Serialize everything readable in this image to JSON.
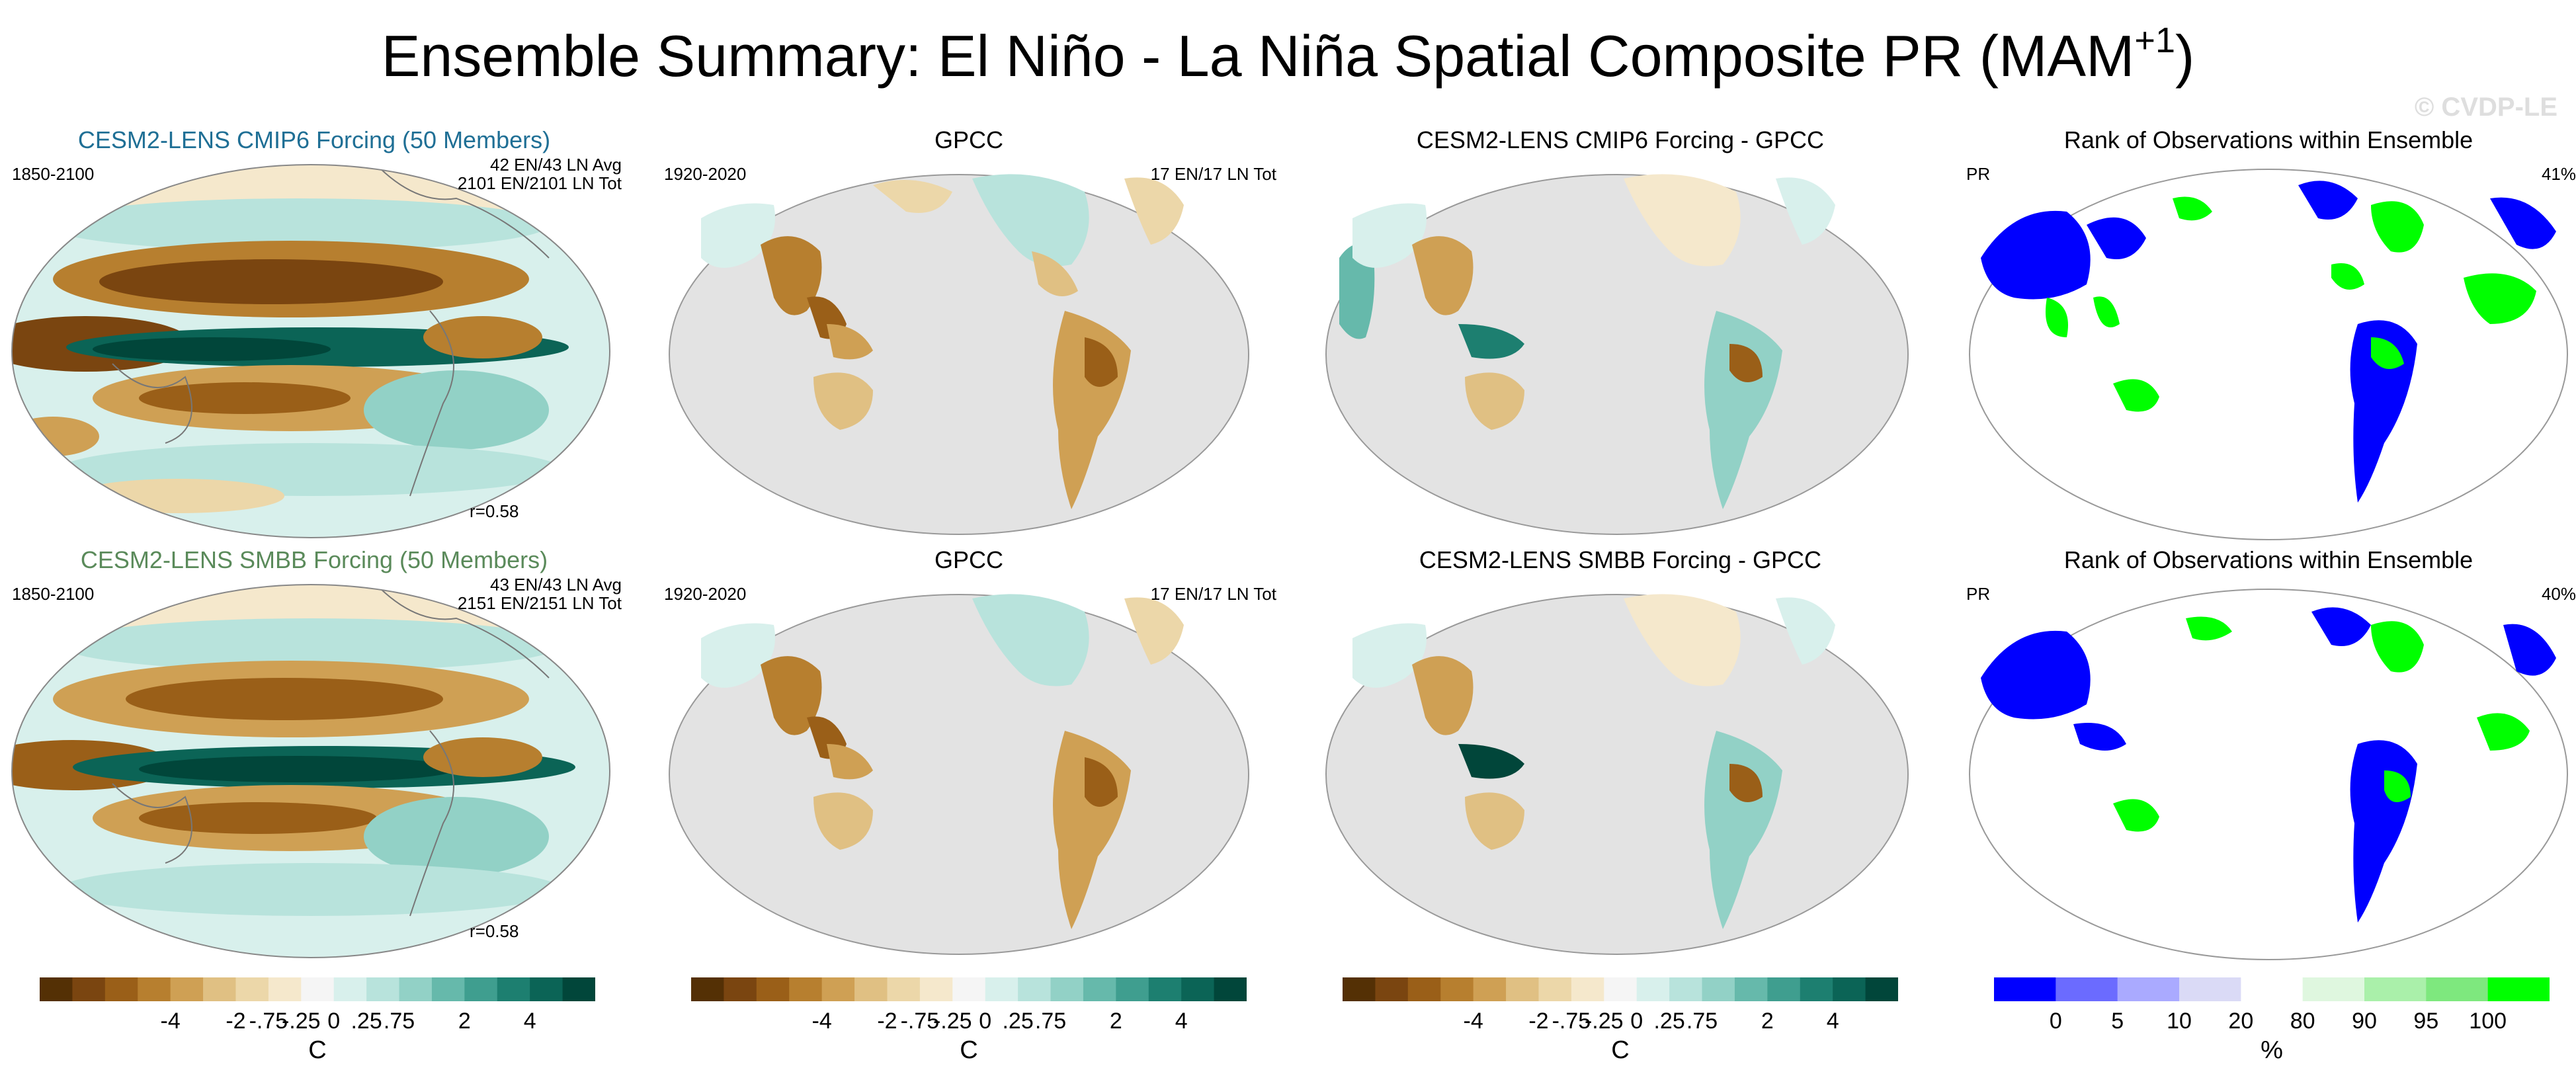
{
  "title": {
    "main": "Ensemble Summary: El Niño - La Niña Spatial Composite PR (MAM",
    "superscript": "+1",
    "close": ")"
  },
  "watermark": "© CVDP-LE",
  "colors": {
    "brown_green_scale": [
      "#543005",
      "#7a4510",
      "#9a5f18",
      "#b77f2f",
      "#cfa054",
      "#e0c083",
      "#ecd7a9",
      "#f5e8cc",
      "#f5f5f5",
      "#d8f0ec",
      "#b8e3dc",
      "#92d1c6",
      "#66b9ab",
      "#3f9e8f",
      "#1d7f70",
      "#0b6456",
      "#01463a"
    ],
    "rank_scale": [
      "#0000ff",
      "#6b6bff",
      "#aaaaff",
      "#dadaf6",
      "#ffffff",
      "#dff7df",
      "#aaf0aa",
      "#7ee87e",
      "#00ff00"
    ],
    "land_gray": "#e3e3e3",
    "model_title_1": "#1f6f95",
    "model_title_2": "#5a8a5a"
  },
  "panels": {
    "r1c1": {
      "title": "CESM2-LENS CMIP6 Forcing (50 Members)",
      "left_label": "1850-2100",
      "right_label_1": "42 EN/43 LN Avg",
      "right_label_2": "2101 EN/2101 LN Tot",
      "corr": "r=0.58"
    },
    "r1c2": {
      "title": "GPCC",
      "left_label": "1920-2020",
      "right_label_1": "17 EN/17 LN Tot"
    },
    "r1c3": {
      "title": "CESM2-LENS CMIP6 Forcing - GPCC"
    },
    "r1c4": {
      "title": "Rank of Observations within Ensemble",
      "left_label": "PR",
      "right_label_1": "41%"
    },
    "r2c1": {
      "title": "CESM2-LENS SMBB Forcing (50 Members)",
      "left_label": "1850-2100",
      "right_label_1": "43 EN/43 LN Avg",
      "right_label_2": "2151 EN/2151 LN Tot",
      "corr": "r=0.58"
    },
    "r2c2": {
      "title": "GPCC",
      "left_label": "1920-2020",
      "right_label_1": "17 EN/17 LN Tot"
    },
    "r2c3": {
      "title": "CESM2-LENS SMBB Forcing - GPCC"
    },
    "r2c4": {
      "title": "Rank of Observations within Ensemble",
      "left_label": "PR",
      "right_label_1": "40%"
    }
  },
  "colorbars": {
    "pr_ticks": [
      "-4",
      "-2",
      "-.75",
      "-.25",
      "0",
      ".25",
      ".75",
      "2",
      "4"
    ],
    "pr_unit": "C",
    "rank_ticks": [
      "0",
      "5",
      "10",
      "20",
      "80",
      "90",
      "95",
      "100"
    ],
    "rank_unit": "%"
  }
}
